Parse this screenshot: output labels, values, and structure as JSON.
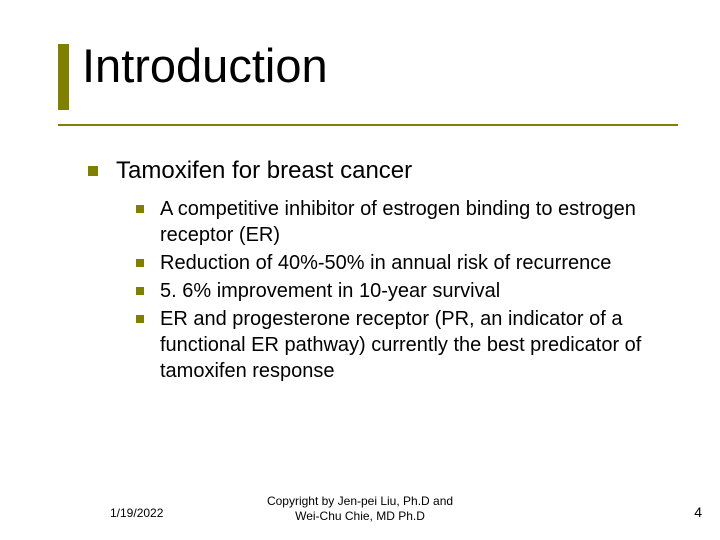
{
  "title": "Introduction",
  "accent_color": "#808000",
  "background_color": "#ffffff",
  "text_color": "#000000",
  "title_fontsize": 47,
  "level1_fontsize": 24,
  "level2_fontsize": 20,
  "footer_fontsize": 12,
  "main": {
    "heading": "Tamoxifen for breast cancer",
    "items": [
      "A competitive inhibitor of estrogen binding to estrogen receptor (ER)",
      "Reduction of 40%-50% in annual risk of recurrence",
      "5. 6% improvement in 10-year survival",
      "ER and progesterone receptor (PR, an indicator of a functional ER pathway) currently the best predicator of tamoxifen response"
    ]
  },
  "footer": {
    "date": "1/19/2022",
    "copyright_line1": "Copyright by Jen-pei Liu, Ph.D and",
    "copyright_line2": "Wei-Chu Chie, MD Ph.D",
    "page_number": "4"
  }
}
